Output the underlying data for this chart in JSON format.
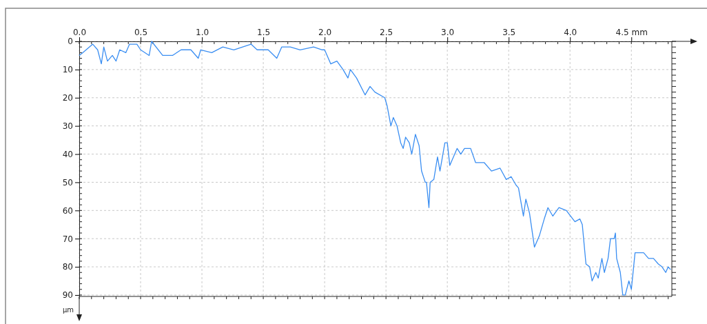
{
  "chart_data": {
    "type": "line",
    "ylabel": "µm",
    "xlim": [
      0,
      4.83
    ],
    "ylim": [
      90.5,
      0
    ],
    "xticks": [
      {
        "value": 0,
        "label": "0.0"
      },
      0.5,
      {
        "value": 1,
        "label": "1.0"
      },
      1.5,
      {
        "value": 2,
        "label": "2.0"
      },
      2.5,
      {
        "value": 3,
        "label": "3.0"
      },
      3.5,
      {
        "value": 4,
        "label": "4.0"
      },
      {
        "value": 4.5,
        "label": "4.5 mm"
      }
    ],
    "yticks": [
      0,
      10,
      20,
      30,
      40,
      50,
      60,
      70,
      80,
      90
    ],
    "grid": true,
    "line_style": "solid",
    "marker": "none",
    "series": [
      {
        "color": "#3a8ef2",
        "x": [
          0,
          0.03,
          0.11,
          0.15,
          0.18,
          0.2,
          0.23,
          0.27,
          0.3,
          0.33,
          0.38,
          0.41,
          0.47,
          0.5,
          0.57,
          0.59,
          0.68,
          0.76,
          0.83,
          0.91,
          0.97,
          0.99,
          1.08,
          1.17,
          1.26,
          1.4,
          1.45,
          1.54,
          1.61,
          1.65,
          1.72,
          1.8,
          1.91,
          1.98,
          2.0,
          2.05,
          2.1,
          2.15,
          2.19,
          2.21,
          2.26,
          2.33,
          2.37,
          2.41,
          2.49,
          2.51,
          2.54,
          2.56,
          2.59,
          2.62,
          2.64,
          2.66,
          2.69,
          2.71,
          2.74,
          2.77,
          2.79,
          2.82,
          2.83,
          2.85,
          2.86,
          2.89,
          2.92,
          2.94,
          2.98,
          3.0,
          3.02,
          3.08,
          3.11,
          3.14,
          3.19,
          3.23,
          3.3,
          3.36,
          3.43,
          3.48,
          3.52,
          3.56,
          3.58,
          3.62,
          3.64,
          3.67,
          3.71,
          3.75,
          3.79,
          3.82,
          3.86,
          3.91,
          3.97,
          4.04,
          4.08,
          4.1,
          4.13,
          4.16,
          4.18,
          4.21,
          4.23,
          4.26,
          4.28,
          4.31,
          4.33,
          4.36,
          4.37,
          4.38,
          4.41,
          4.43,
          4.45,
          4.48,
          4.5,
          4.53,
          4.6,
          4.64,
          4.68,
          4.72,
          4.75,
          4.78,
          4.8,
          4.82
        ],
        "values": [
          5,
          4,
          1,
          3,
          8,
          2,
          7,
          5,
          7,
          3,
          4,
          1,
          1,
          3,
          5,
          0,
          5,
          5,
          3,
          3,
          6,
          3,
          4,
          2,
          3,
          1,
          3,
          3,
          6,
          2,
          2,
          3,
          2,
          3,
          3,
          8,
          7,
          10,
          13,
          10,
          13,
          19,
          16,
          18,
          20,
          23,
          30,
          27,
          30,
          36,
          38,
          34,
          36,
          40,
          33,
          37,
          46,
          50,
          50,
          59,
          50,
          49,
          41,
          46,
          36,
          36,
          44,
          38,
          40,
          38,
          38,
          43,
          43,
          46,
          45,
          49,
          48,
          51,
          52,
          62,
          56,
          61,
          73,
          69,
          63,
          59,
          62,
          59,
          60,
          64,
          63,
          65,
          79,
          80,
          85,
          82,
          84,
          77,
          82,
          77,
          70,
          70,
          68,
          77,
          82,
          90,
          90,
          85,
          88,
          75,
          75,
          77,
          77,
          79,
          80,
          82,
          80,
          81
        ]
      }
    ]
  }
}
